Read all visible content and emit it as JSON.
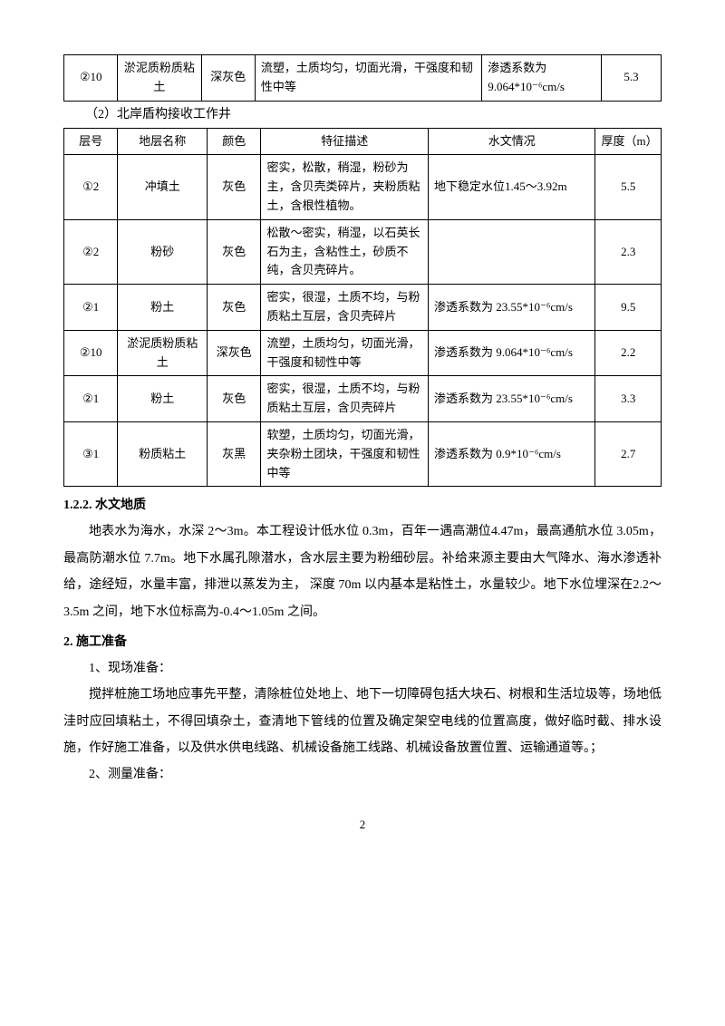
{
  "table1": {
    "row": {
      "layer": "②10",
      "name": "淤泥质粉质粘土",
      "color": "深灰色",
      "desc": "流塑，土质均匀，切面光滑，干强度和韧性中等",
      "hydro": "渗透系数为9.064*10⁻⁶cm/s",
      "thick": "5.3"
    }
  },
  "subtitle2": "（2）北岸盾构接收工作井",
  "table2": {
    "headers": {
      "layer": "层号",
      "name": "地层名称",
      "color": "颜色",
      "desc": "特征描述",
      "hydro": "水文情况",
      "thick": "厚度（m）"
    },
    "rows": [
      {
        "layer": "①2",
        "name": "冲填土",
        "color": "灰色",
        "desc": "密实，松散，稍湿，粉砂为主，含贝壳类碎片，夹粉质粘土，含根性植物。",
        "hydro": "地下稳定水位1.45～3.92m",
        "thick": "5.5"
      },
      {
        "layer": "②2",
        "name": "粉砂",
        "color": "灰色",
        "desc": "松散～密实，稍湿，以石英长石为主，含粘性土，砂质不纯，含贝壳碎片。",
        "hydro": "",
        "thick": "2.3"
      },
      {
        "layer": "②1",
        "name": "粉土",
        "color": "灰色",
        "desc": "密实，很湿，土质不均，与粉质粘土互层，含贝壳碎片",
        "hydro": "渗透系数为 23.55*10⁻⁶cm/s",
        "thick": "9.5"
      },
      {
        "layer": "②10",
        "name": "淤泥质粉质粘土",
        "color": "深灰色",
        "desc": "流塑，土质均匀，切面光滑，干强度和韧性中等",
        "hydro": "渗透系数为 9.064*10⁻⁶cm/s",
        "thick": "2.2"
      },
      {
        "layer": "②1",
        "name": "粉土",
        "color": "灰色",
        "desc": "密实，很湿，土质不均，与粉质粘土互层，含贝壳碎片",
        "hydro": "渗透系数为 23.55*10⁻⁶cm/s",
        "thick": "3.3"
      },
      {
        "layer": "③1",
        "name": "粉质粘土",
        "color": "灰黑",
        "desc": "软塑，土质均匀，切面光滑，夹杂粉土团块，干强度和韧性中等",
        "hydro": "渗透系数为 0.9*10⁻⁶cm/s",
        "thick": "2.7"
      }
    ]
  },
  "heading122": "1.2.2. 水文地质",
  "para122": "地表水为海水，水深 2～3m。本工程设计低水位 0.3m，百年一遇高潮位4.47m，最高通航水位 3.05m，最高防潮水位 7.7m。地下水属孔隙潜水，含水层主要为粉细砂层。补给来源主要由大气降水、海水渗透补给，途经短，水量丰富，排泄以蒸发为主，  深度  70m 以内基本是粘性土，水量较少。地下水位埋深在2.2～3.5m 之间，地下水位标高为-0.4～1.05m 之间。",
  "heading2": "2.  施工准备",
  "item1label": "1、现场准备：",
  "item1text": "搅拌桩施工场地应事先平整，清除桩位处地上、地下一切障碍包括大块石、树根和生活垃圾等，场地低洼时应回填粘土，不得回填杂土，查清地下管线的位置及确定架空电线的位置高度，做好临时截、排水设施，作好施工准备，以及供水供电线路、机械设备施工线路、机械设备放置位置、运输通道等。；",
  "item2label": "2、测量准备：",
  "pageNumber": "2"
}
